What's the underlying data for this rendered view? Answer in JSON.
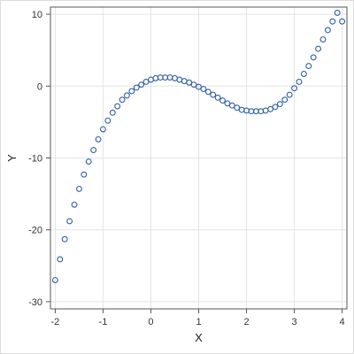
{
  "chart_data": {
    "type": "scatter",
    "title": "",
    "xlabel": "X",
    "ylabel": "Y",
    "xlim": [
      -2.1,
      4.1
    ],
    "ylim": [
      -31,
      11
    ],
    "xticks": [
      -2,
      -1,
      0,
      1,
      2,
      3,
      4
    ],
    "yticks": [
      -30,
      -20,
      -10,
      0,
      10
    ],
    "grid": true,
    "marker": "open-circle",
    "colors": {
      "marker": "#2f5ea8",
      "grid": "#e4e4e4",
      "axis": "#555555"
    },
    "series": [
      {
        "x": [
          -2,
          -1.9,
          -1.8,
          -1.7,
          -1.6,
          -1.5,
          -1.4,
          -1.3,
          -1.2,
          -1.1,
          -1,
          -0.9,
          -0.8,
          -0.7,
          -0.6,
          -0.5,
          -0.4,
          -0.3,
          -0.2,
          -0.1,
          0,
          0.1,
          0.2,
          0.3,
          0.4,
          0.5,
          0.6,
          0.7,
          0.8,
          0.9,
          1,
          1.1,
          1.2,
          1.3,
          1.4,
          1.5,
          1.6,
          1.7,
          1.8,
          1.9,
          2,
          2.1,
          2.2,
          2.3,
          2.4,
          2.5,
          2.6,
          2.7,
          2.8,
          2.9,
          3,
          3.1,
          3.2,
          3.3,
          3.4,
          3.5,
          3.6,
          3.7,
          3.8,
          3.9,
          4
        ],
        "y": [
          -27,
          -24.1,
          -21.3,
          -18.8,
          -16.5,
          -14.3,
          -12.3,
          -10.5,
          -8.9,
          -7.4,
          -6,
          -4.8,
          -3.7,
          -2.8,
          -1.9,
          -1.3,
          -0.7,
          -0.2,
          0.2,
          0.6,
          0.9,
          1.1,
          1.2,
          1.2,
          1.2,
          1.1,
          0.9,
          0.7,
          0.5,
          0.2,
          -0.1,
          -0.4,
          -0.8,
          -1.2,
          -1.6,
          -2,
          -2.4,
          -2.7,
          -3,
          -3.3,
          -3.4,
          -3.5,
          -3.5,
          -3.5,
          -3.4,
          -3.2,
          -2.9,
          -2.5,
          -1.9,
          -1.2,
          -0.3,
          0.6,
          1.7,
          2.8,
          4,
          5.2,
          6.5,
          7.8,
          9,
          10.2,
          9
        ]
      }
    ]
  }
}
